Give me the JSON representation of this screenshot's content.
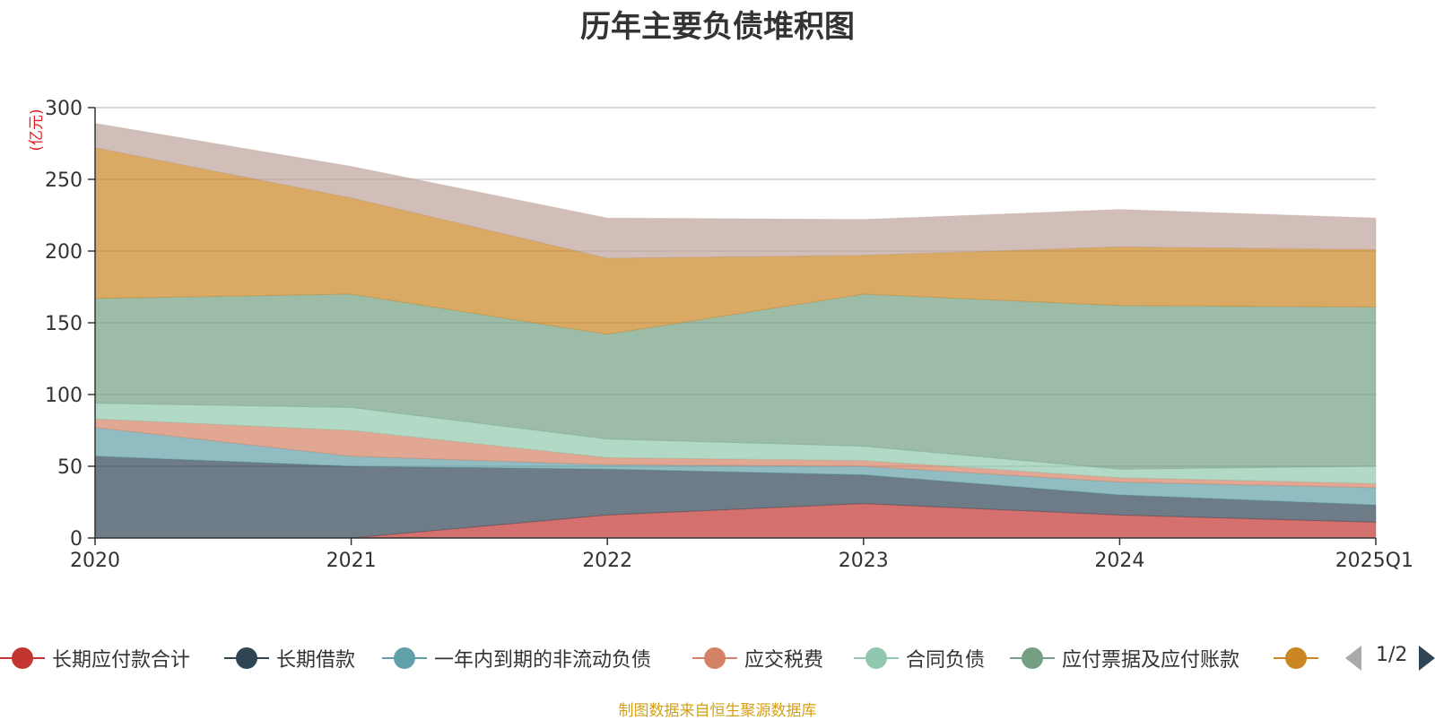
{
  "title": "历年主要负债堆积图",
  "source": "制图数据来自恒生聚源数据库",
  "source_color": "#d4a017",
  "pager": {
    "text": "1/2"
  },
  "chart_data": {
    "type": "area",
    "stacked": true,
    "title": "历年主要负债堆积图",
    "ylabel": "(亿元)",
    "ylim": [
      0,
      300
    ],
    "yticks": [
      "0",
      "50",
      "100",
      "150",
      "200",
      "250",
      "300"
    ],
    "categories": [
      "2020",
      "2021",
      "2022",
      "2023",
      "2024",
      "2025Q1"
    ],
    "grid": true,
    "legend_position": "bottom",
    "series": [
      {
        "name": "长期应付款合计",
        "color": "#c23531",
        "values": [
          0,
          0,
          16,
          24,
          16,
          11
        ]
      },
      {
        "name": "长期借款",
        "color": "#2f4554",
        "values": [
          57,
          50,
          32,
          20,
          14,
          12
        ]
      },
      {
        "name": "一年内到期的非流动负债",
        "color": "#61a0a8",
        "values": [
          20,
          7,
          3,
          6,
          9,
          12
        ]
      },
      {
        "name": "应交税费",
        "color": "#d48265",
        "values": [
          6,
          18,
          5,
          4,
          3,
          3
        ]
      },
      {
        "name": "合同负债",
        "color": "#91c7ae",
        "values": [
          11,
          16,
          13,
          10,
          6,
          12
        ]
      },
      {
        "name": "应付票据及应付账款",
        "color": "#749f83",
        "values": [
          73,
          79,
          73,
          106,
          114,
          111
        ]
      },
      {
        "name": "",
        "color": "#ca8622",
        "values": [
          105,
          67,
          53,
          27,
          41,
          40
        ]
      },
      {
        "name": "",
        "color": "#bda29a",
        "values": [
          17,
          22,
          28,
          25,
          26,
          22
        ]
      }
    ]
  }
}
